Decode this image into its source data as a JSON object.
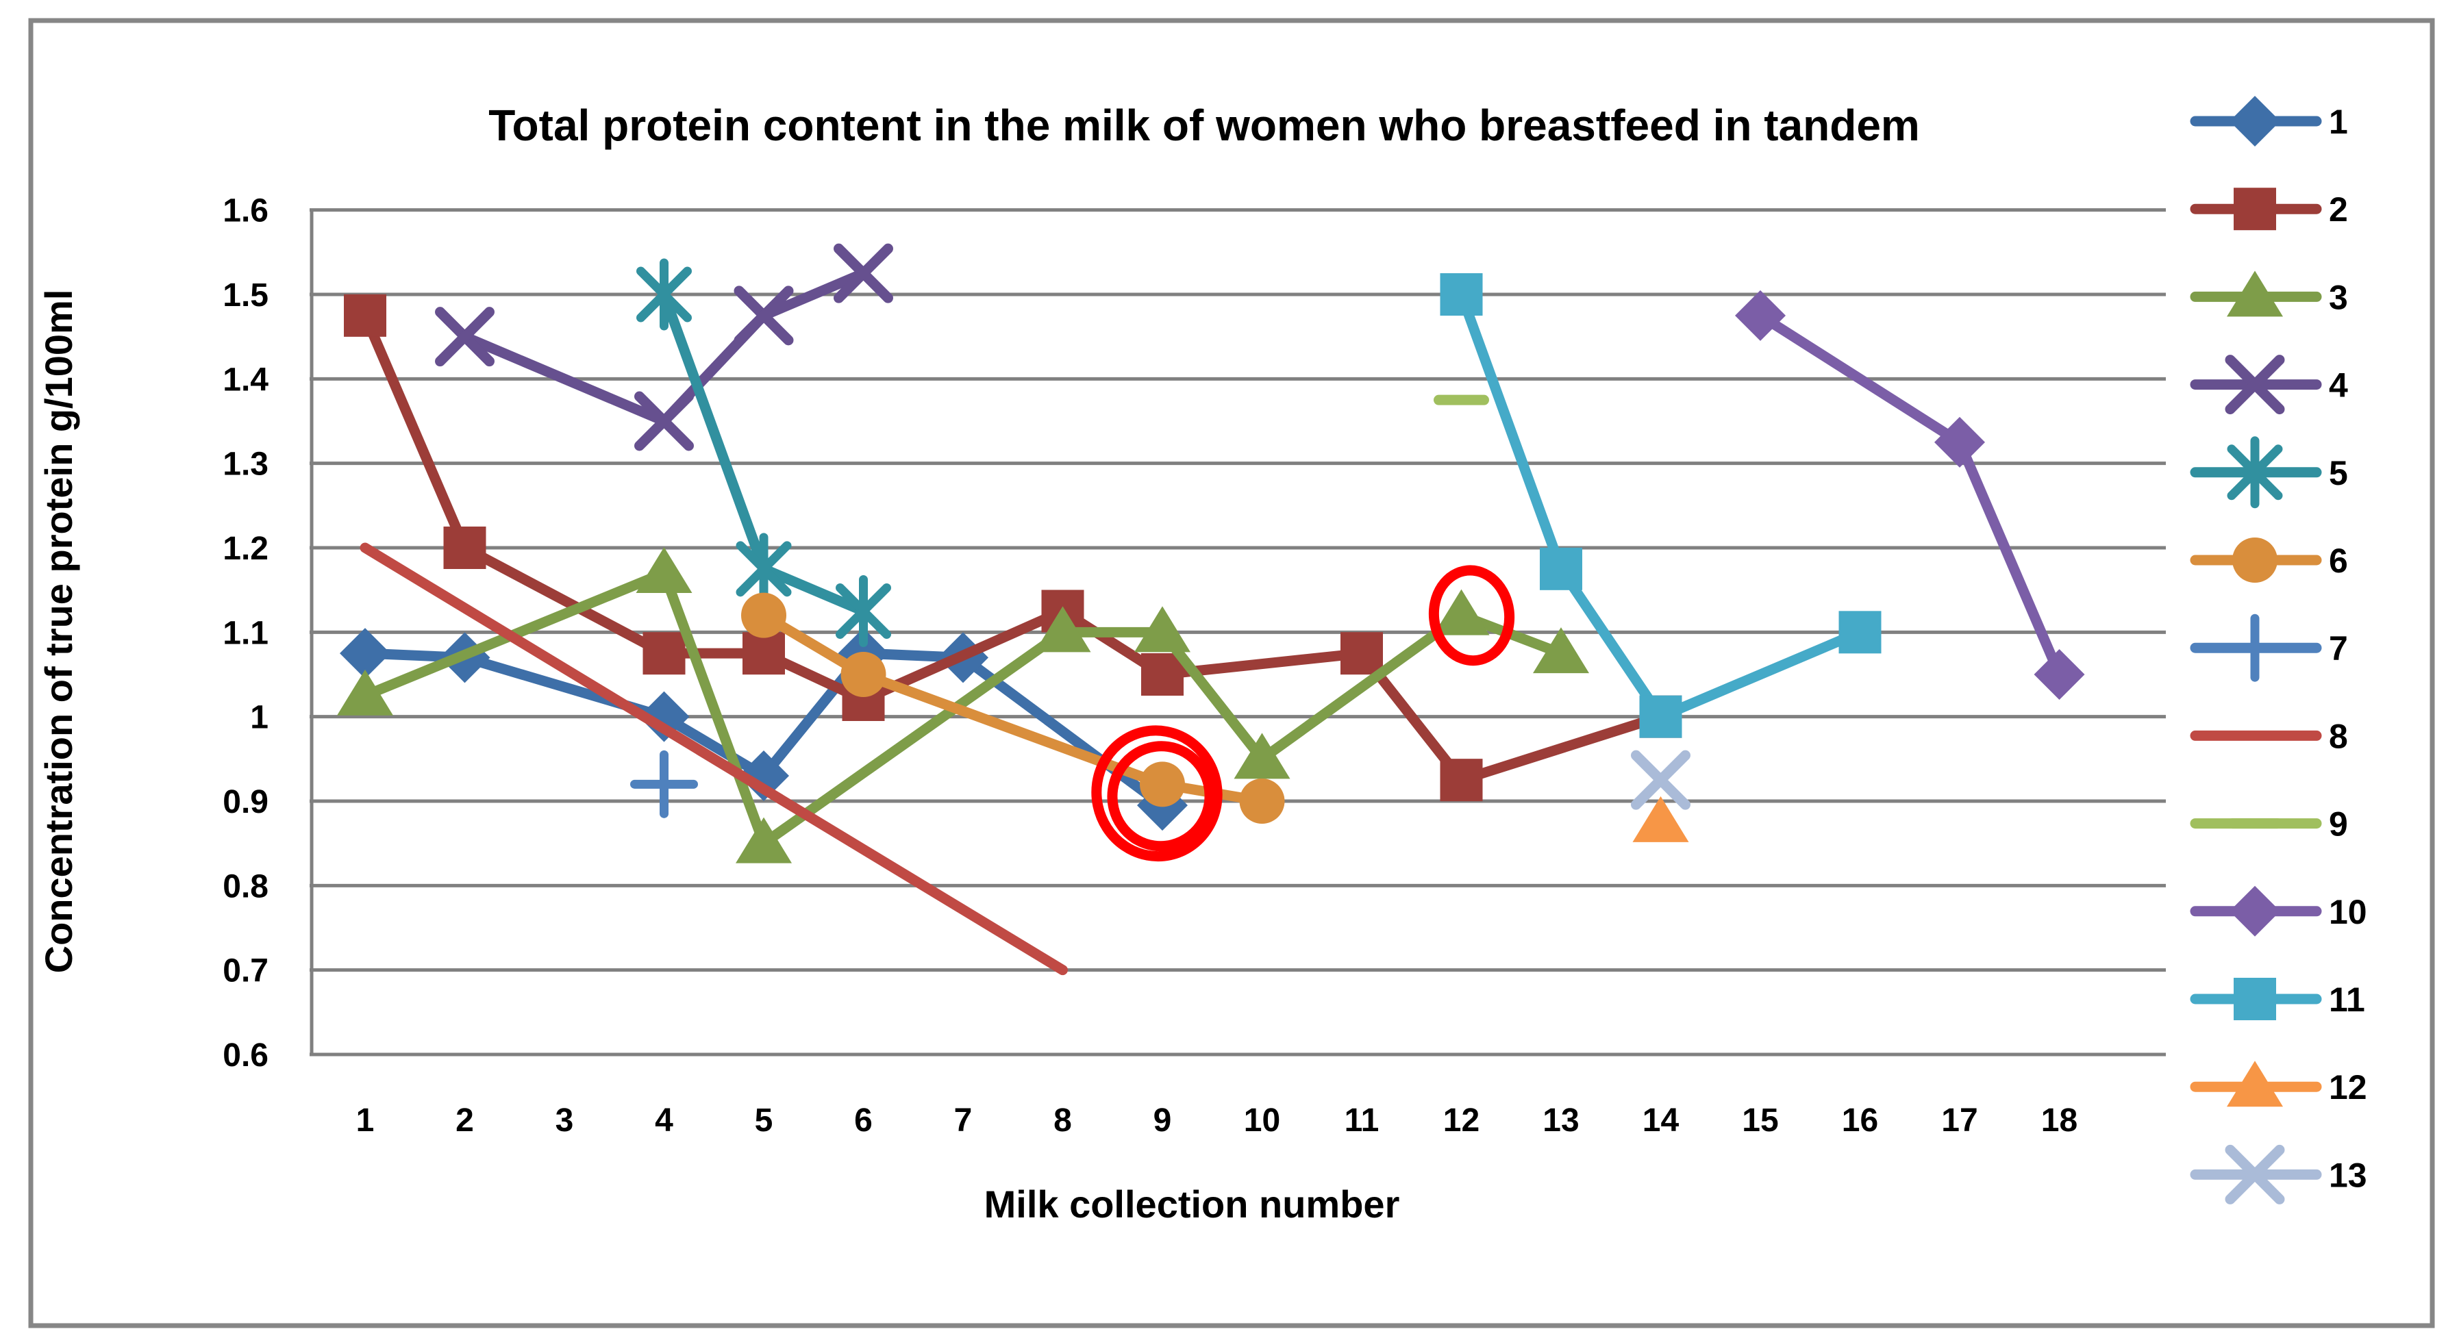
{
  "chart_data": {
    "type": "line",
    "title": "Total protein content in the milk of women who breastfeed in tandem",
    "xlabel": "Milk collection number",
    "ylabel": "Concentration of true protein g/100ml",
    "x_ticks": [
      "1",
      "2",
      "3",
      "4",
      "5",
      "6",
      "7",
      "8",
      "9",
      "10",
      "11",
      "12",
      "13",
      "14",
      "15",
      "16",
      "17",
      "18"
    ],
    "y_ticks": [
      "1.6",
      "1.5",
      "1.4",
      "1.3",
      "1.2",
      "1.1",
      "1",
      "0.9",
      "0.8",
      "0.7",
      "0.6"
    ],
    "ylim": [
      0.6,
      1.6
    ],
    "xlim": [
      1,
      18
    ],
    "grid": true,
    "legend_position": "right",
    "gridline_color": "#808080",
    "axis_color": "#808080",
    "outer_border_color": "#868686",
    "annotation_color": "#FF0000",
    "text_color": "#000000",
    "series": [
      {
        "name": "1",
        "color": "#3E6FA8",
        "marker": "diamond",
        "points": [
          [
            1,
            1.075
          ],
          [
            2,
            1.07
          ],
          [
            4,
            1.0
          ],
          [
            5,
            0.93
          ],
          [
            6,
            1.075
          ],
          [
            7,
            1.07
          ],
          [
            9,
            0.895
          ]
        ]
      },
      {
        "name": "2",
        "color": "#9C3D38",
        "marker": "square",
        "points": [
          [
            1,
            1.475
          ],
          [
            2,
            1.2
          ],
          [
            4,
            1.075
          ],
          [
            5,
            1.075
          ],
          [
            6,
            1.02
          ],
          [
            8,
            1.125
          ],
          [
            9,
            1.05
          ],
          [
            11,
            1.075
          ],
          [
            12,
            0.925
          ],
          [
            14,
            1.0
          ]
        ]
      },
      {
        "name": "3",
        "color": "#7E9D49",
        "marker": "triangle",
        "points": [
          [
            1,
            1.025
          ],
          [
            4,
            1.17
          ],
          [
            5,
            0.85
          ],
          [
            8,
            1.1
          ],
          [
            9,
            1.1
          ],
          [
            10,
            0.95
          ],
          [
            12,
            1.12
          ],
          [
            13,
            1.075
          ]
        ]
      },
      {
        "name": "4",
        "color": "#66508F",
        "marker": "x",
        "points": [
          [
            2,
            1.45
          ],
          [
            4,
            1.35
          ],
          [
            5,
            1.475
          ],
          [
            6,
            1.525
          ]
        ]
      },
      {
        "name": "5",
        "color": "#31909F",
        "marker": "star",
        "points": [
          [
            4,
            1.5
          ],
          [
            5,
            1.175
          ],
          [
            6,
            1.125
          ]
        ]
      },
      {
        "name": "6",
        "color": "#D98E3C",
        "marker": "circle",
        "points": [
          [
            5,
            1.12
          ],
          [
            6,
            1.05
          ],
          [
            9,
            0.92
          ],
          [
            10,
            0.9
          ]
        ]
      },
      {
        "name": "7",
        "color": "#4F81BD",
        "marker": "plus",
        "points": [
          [
            4,
            0.92
          ]
        ]
      },
      {
        "name": "8",
        "color": "#C04A44",
        "marker": "none",
        "points": [
          [
            1,
            1.2
          ],
          [
            8,
            0.7
          ]
        ]
      },
      {
        "name": "9",
        "color": "#A0BF5E",
        "marker": "dash",
        "points": [
          [
            12,
            1.375
          ]
        ]
      },
      {
        "name": "10",
        "color": "#7B5EA7",
        "marker": "diamond",
        "points": [
          [
            15,
            1.475
          ],
          [
            17,
            1.325
          ],
          [
            18,
            1.05
          ]
        ]
      },
      {
        "name": "11",
        "color": "#45AAC8",
        "marker": "square",
        "points": [
          [
            12,
            1.5
          ],
          [
            13,
            1.175
          ],
          [
            14,
            1.0
          ],
          [
            16,
            1.1
          ]
        ]
      },
      {
        "name": "12",
        "color": "#F79646",
        "marker": "triangle",
        "points": [
          [
            14,
            0.875
          ]
        ]
      },
      {
        "name": "13",
        "color": "#AABBD8",
        "marker": "x",
        "points": [
          [
            14,
            0.925
          ]
        ]
      }
    ],
    "annotations": [
      {
        "type": "double-circle",
        "x": 9,
        "y": 0.9075
      },
      {
        "type": "circle",
        "x": 12,
        "y": 1.115
      }
    ]
  }
}
